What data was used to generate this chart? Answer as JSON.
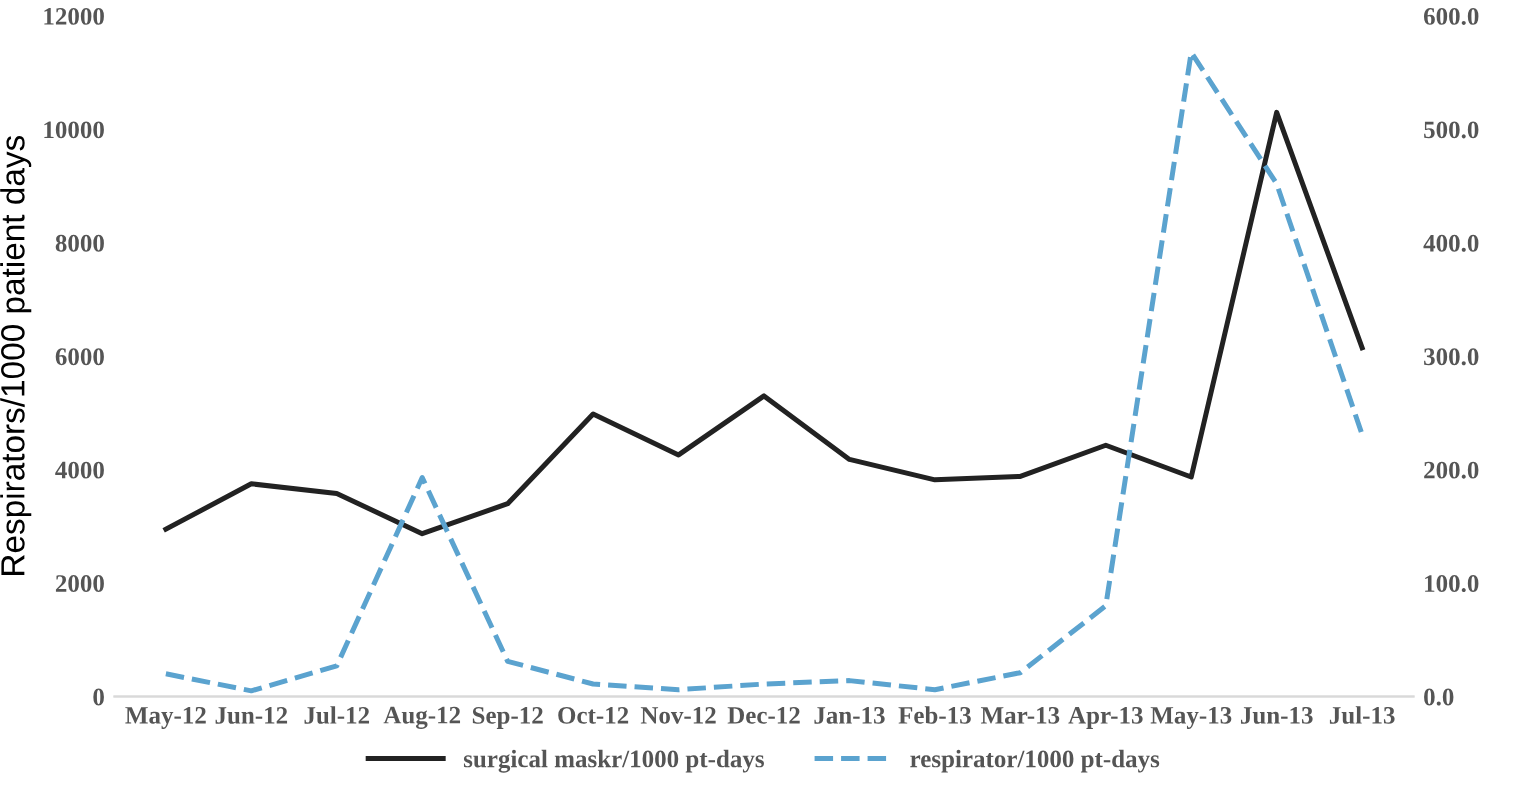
{
  "chart_data": {
    "type": "line",
    "ylabel": "Respirators/1000 patient days",
    "categories": [
      "May-12",
      "Jun-12",
      "Jul-12",
      "Aug-12",
      "Sep-12",
      "Oct-12",
      "Nov-12",
      "Dec-12",
      "Jan-13",
      "Feb-13",
      "Mar-13",
      "Apr-13",
      "May-13",
      "Jun-13",
      "Jul-13"
    ],
    "series": [
      {
        "name": "surgical maskr/1000 pt-days",
        "color": "#222222",
        "line_style": "solid",
        "values": [
          2950,
          3750,
          3580,
          2870,
          3400,
          4980,
          4260,
          5300,
          4180,
          3820,
          3880,
          4430,
          3870,
          10300,
          6150
        ]
      },
      {
        "name": "respirator/1000 pt-days",
        "color": "#5ba3cf",
        "line_style": "dashed",
        "axis": "y2",
        "values": [
          20,
          5,
          27,
          193,
          31,
          11,
          6,
          11,
          14,
          6,
          21,
          80,
          568,
          452,
          231
        ]
      }
    ],
    "ylim": [
      0,
      12000
    ],
    "yticks": [
      0,
      2000,
      4000,
      6000,
      8000,
      10000,
      12000
    ],
    "y2lim": [
      0,
      600
    ],
    "y2ticks": [
      {
        "value": 0,
        "label": "0.0"
      },
      {
        "value": 100,
        "label": "100.0"
      },
      {
        "value": 200,
        "label": "200.0"
      },
      {
        "value": 300,
        "label": "300.0"
      },
      {
        "value": 400,
        "label": "400.0"
      },
      {
        "value": 500,
        "label": "500.0"
      },
      {
        "value": 600,
        "label": "600.0"
      }
    ],
    "legend": "bottom",
    "grid": false
  }
}
